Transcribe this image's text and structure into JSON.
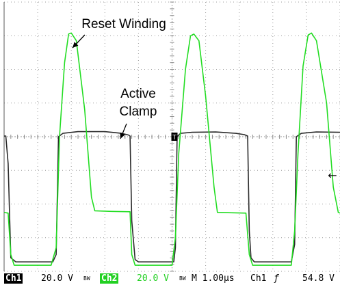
{
  "chart_data": {
    "type": "line",
    "title": "",
    "xlabel": "",
    "ylabel": "",
    "grid": true,
    "grid_divisions": {
      "x": 10,
      "y": 8
    },
    "xlim_div": [
      0,
      10
    ],
    "ylim_div": [
      -4,
      4
    ],
    "series": [
      {
        "channel": "Ch1",
        "color": "#2b2b2b",
        "points_div": [
          [
            0.0,
            0.02
          ],
          [
            0.05,
            0.02
          ],
          [
            0.12,
            -0.8
          ],
          [
            0.2,
            -3.6
          ],
          [
            0.35,
            -3.72
          ],
          [
            1.45,
            -3.72
          ],
          [
            1.55,
            -3.5
          ],
          [
            1.62,
            0.0
          ],
          [
            1.75,
            0.1
          ],
          [
            2.2,
            0.15
          ],
          [
            3.0,
            0.15
          ],
          [
            3.5,
            0.1
          ],
          [
            3.7,
            0.05
          ],
          [
            3.75,
            0.02
          ],
          [
            3.8,
            -2.5
          ],
          [
            3.9,
            -3.65
          ],
          [
            4.0,
            -3.72
          ],
          [
            5.05,
            -3.72
          ],
          [
            5.1,
            -3.3
          ],
          [
            5.15,
            0.0
          ],
          [
            5.25,
            0.1
          ],
          [
            5.6,
            0.13
          ],
          [
            6.3,
            0.14
          ],
          [
            6.9,
            0.1
          ],
          [
            7.15,
            0.06
          ],
          [
            7.25,
            0.02
          ],
          [
            7.3,
            -2.8
          ],
          [
            7.35,
            -3.6
          ],
          [
            7.45,
            -3.72
          ],
          [
            8.55,
            -3.72
          ],
          [
            8.65,
            -3.2
          ],
          [
            8.7,
            0.0
          ],
          [
            8.85,
            0.1
          ],
          [
            9.3,
            0.14
          ],
          [
            10.0,
            0.13
          ]
        ]
      },
      {
        "channel": "Ch2",
        "color": "#22dd22",
        "points_div": [
          [
            0.0,
            -2.25
          ],
          [
            0.12,
            -2.27
          ],
          [
            0.2,
            -3.5
          ],
          [
            0.3,
            -3.82
          ],
          [
            1.4,
            -3.82
          ],
          [
            1.55,
            -3.3
          ],
          [
            1.65,
            0.0
          ],
          [
            1.8,
            2.2
          ],
          [
            1.92,
            3.05
          ],
          [
            2.0,
            3.08
          ],
          [
            2.15,
            2.85
          ],
          [
            2.4,
            0.8
          ],
          [
            2.6,
            -1.8
          ],
          [
            2.7,
            -2.2
          ],
          [
            3.2,
            -2.22
          ],
          [
            3.75,
            -2.23
          ],
          [
            3.8,
            -3.5
          ],
          [
            3.9,
            -3.82
          ],
          [
            5.0,
            -3.82
          ],
          [
            5.1,
            -3.0
          ],
          [
            5.2,
            -0.5
          ],
          [
            5.4,
            2.0
          ],
          [
            5.55,
            3.0
          ],
          [
            5.65,
            3.05
          ],
          [
            5.8,
            2.85
          ],
          [
            6.0,
            1.2
          ],
          [
            6.25,
            -1.5
          ],
          [
            6.35,
            -2.25
          ],
          [
            7.2,
            -2.27
          ],
          [
            7.3,
            -3.5
          ],
          [
            7.4,
            -3.82
          ],
          [
            8.55,
            -3.82
          ],
          [
            8.65,
            -2.8
          ],
          [
            8.75,
            -0.5
          ],
          [
            8.9,
            2.1
          ],
          [
            9.05,
            3.02
          ],
          [
            9.15,
            3.08
          ],
          [
            9.3,
            2.85
          ],
          [
            9.6,
            1.0
          ],
          [
            9.8,
            -1.5
          ],
          [
            9.95,
            -2.25
          ],
          [
            10.0,
            -2.27
          ]
        ]
      }
    ],
    "annotations": [
      {
        "text_lines": [
          "Reset Winding"
        ]
      },
      {
        "text_lines": [
          "Active",
          "Clamp"
        ]
      }
    ],
    "trigger_marker": "T",
    "right_marker": "←"
  },
  "status": {
    "ch1_label": "Ch1",
    "ch1_scale": "20.0 V",
    "ch1_bw": "BW",
    "ch2_label": "Ch2",
    "ch2_scale": "20.0 V",
    "ch2_bw": "BW",
    "timebase": "M 1.00µs",
    "trigger_source": "Ch1",
    "trigger_slope": "ƒ",
    "trigger_level": "54.8 V"
  }
}
